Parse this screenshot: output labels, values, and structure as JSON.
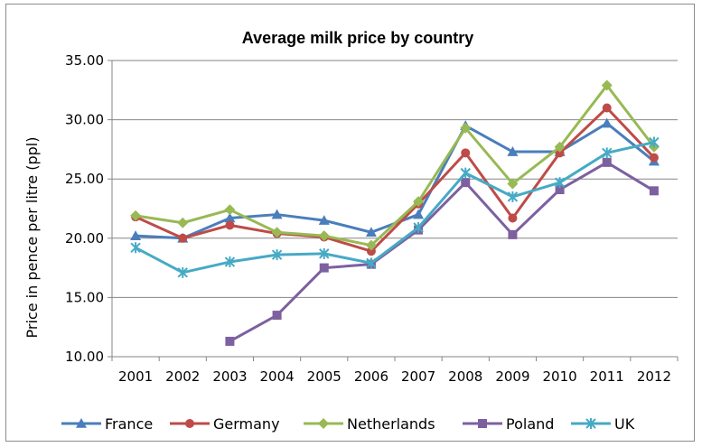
{
  "chart_data": {
    "type": "line",
    "title": "Average milk price by country",
    "xlabel": "",
    "ylabel": "Price in pence per litre (ppl)",
    "ylim": [
      10,
      35
    ],
    "yticks": [
      "10.00",
      "15.00",
      "20.00",
      "25.00",
      "30.00",
      "35.00"
    ],
    "categories": [
      "2001",
      "2002",
      "2003",
      "2004",
      "2005",
      "2006",
      "2007",
      "2008",
      "2009",
      "2010",
      "2011",
      "2012"
    ],
    "grid": "horizontal",
    "legend_position": "bottom",
    "series": [
      {
        "name": "France",
        "color": "#4a7ebb",
        "marker": "triangle",
        "values": [
          20.2,
          20.0,
          21.7,
          22.0,
          21.5,
          20.5,
          22.0,
          29.5,
          27.3,
          27.3,
          29.7,
          26.5
        ]
      },
      {
        "name": "Germany",
        "color": "#be4b48",
        "marker": "circle",
        "values": [
          21.8,
          20.0,
          21.1,
          20.4,
          20.1,
          18.9,
          22.9,
          27.2,
          21.7,
          27.2,
          31.0,
          26.8
        ]
      },
      {
        "name": "Netherlands",
        "color": "#98b954",
        "marker": "diamond",
        "values": [
          21.9,
          21.3,
          22.4,
          20.5,
          20.2,
          19.4,
          23.1,
          29.3,
          24.6,
          27.7,
          32.9,
          27.7
        ]
      },
      {
        "name": "Poland",
        "color": "#7d60a0",
        "marker": "square",
        "values": [
          null,
          null,
          11.3,
          13.5,
          17.5,
          17.8,
          20.7,
          24.7,
          20.3,
          24.1,
          26.4,
          24.0
        ]
      },
      {
        "name": "UK",
        "color": "#46aac5",
        "marker": "star",
        "values": [
          19.2,
          17.1,
          18.0,
          18.6,
          18.7,
          17.9,
          20.9,
          25.5,
          23.5,
          24.7,
          27.2,
          28.1
        ]
      }
    ]
  }
}
